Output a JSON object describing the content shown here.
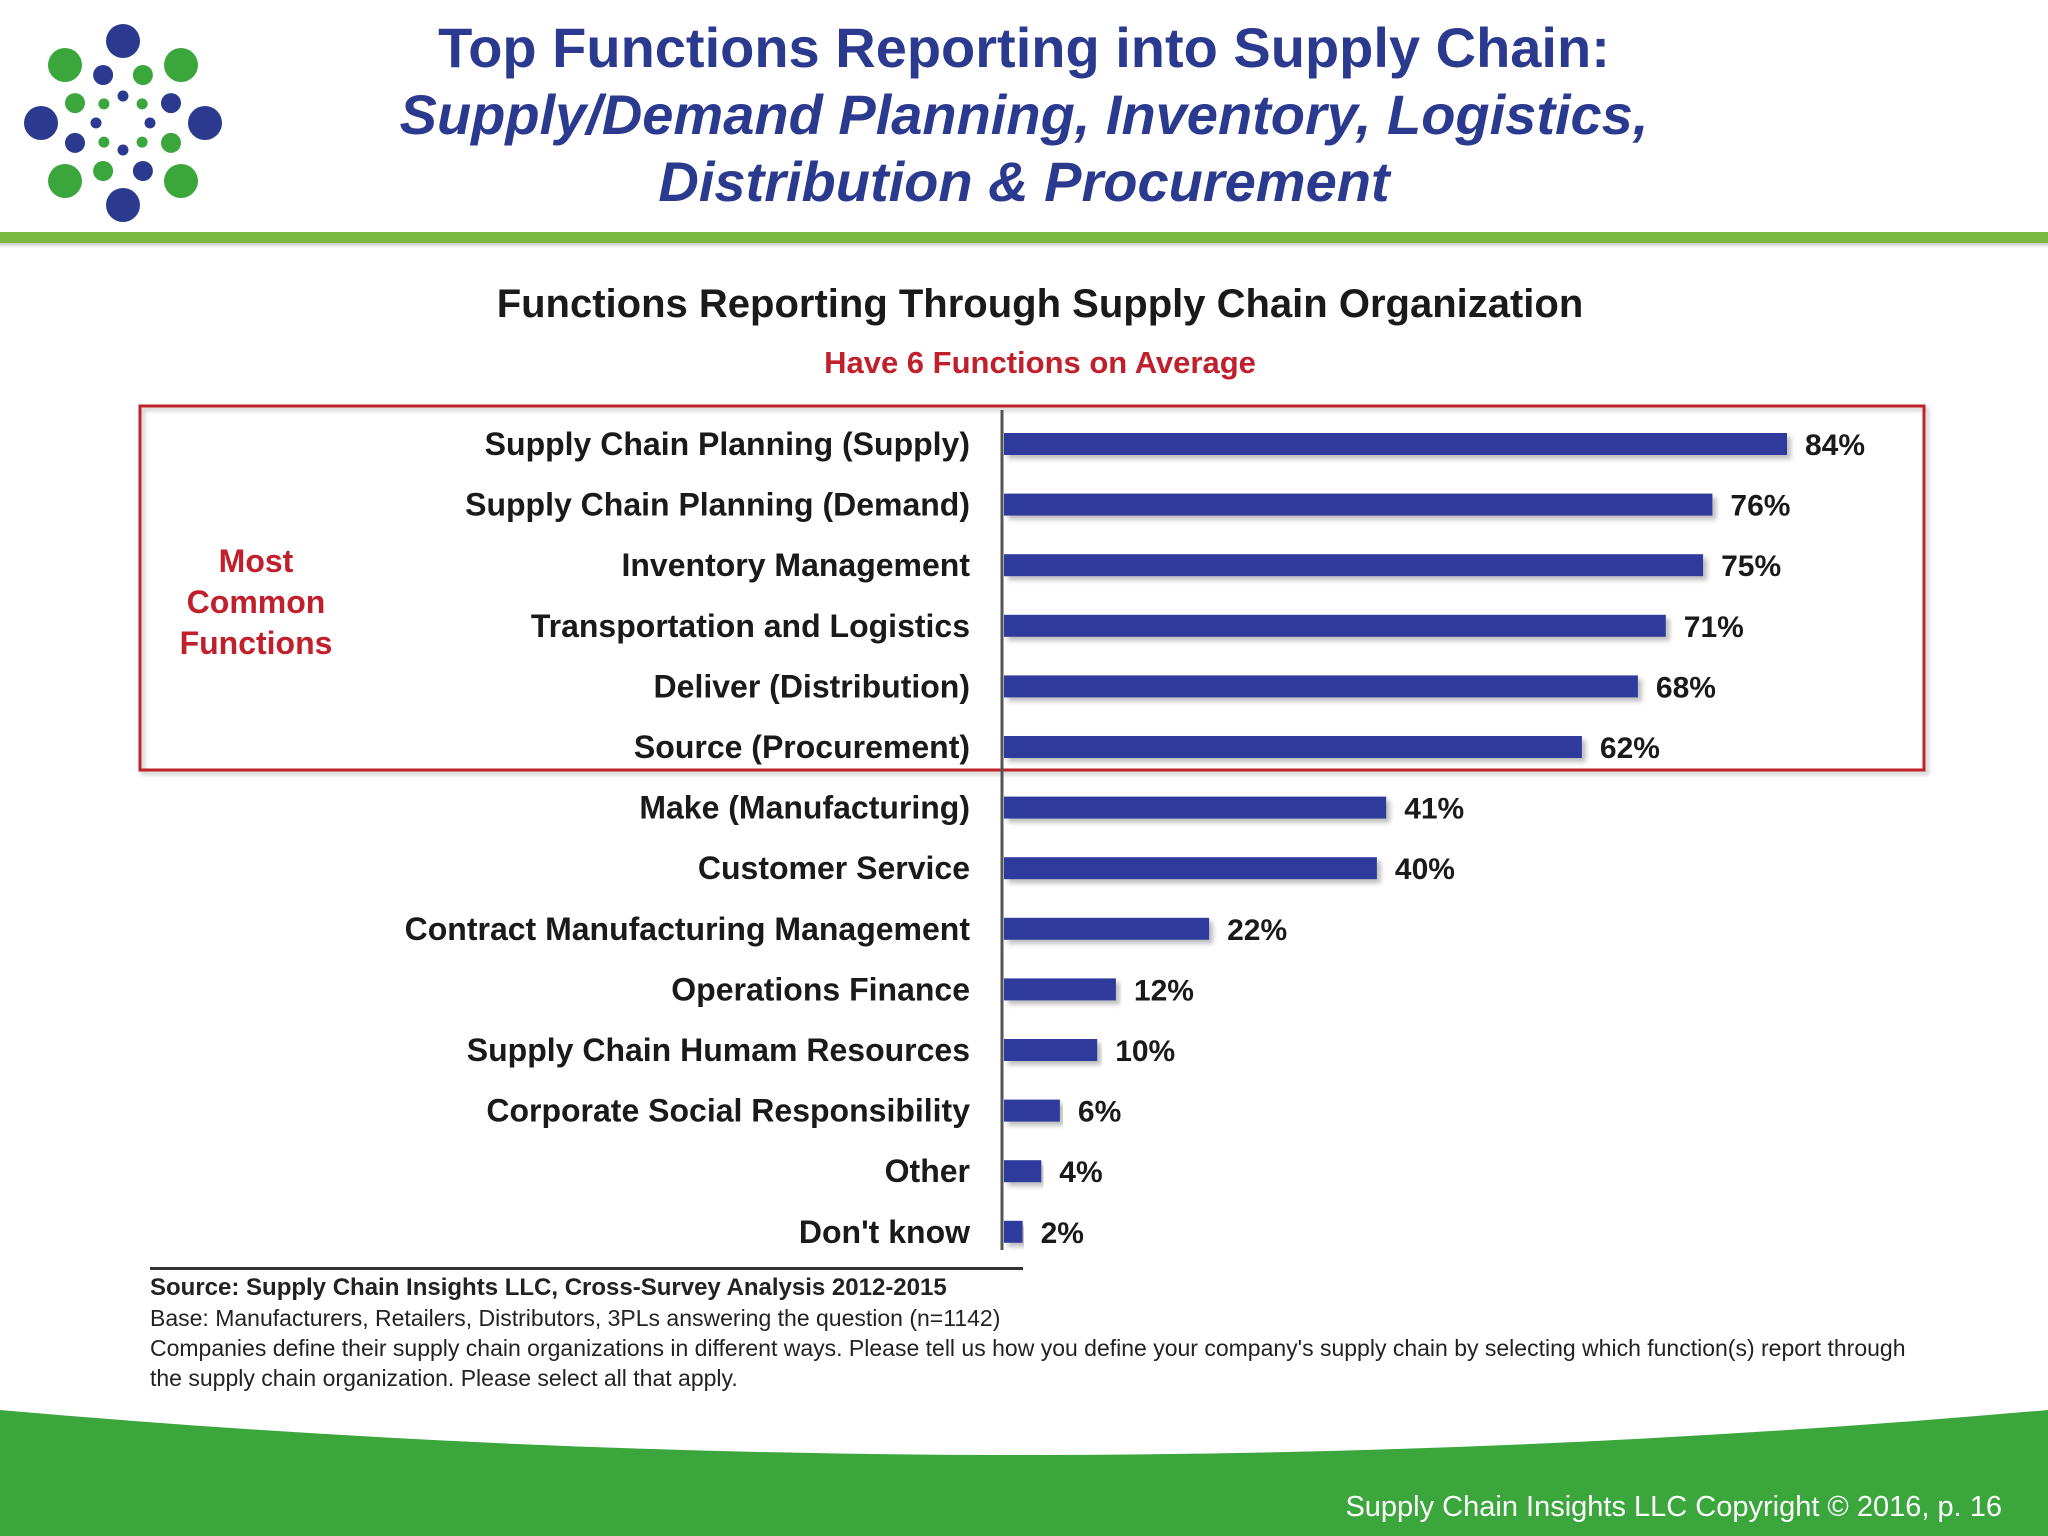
{
  "header": {
    "title_line1": "Top Functions Reporting into Supply Chain:",
    "title_line2": "Supply/Demand Planning, Inventory, Logistics,",
    "title_line3": "Distribution & Procurement"
  },
  "colors": {
    "title": "#2b3a8f",
    "bar": "#2f3a9c",
    "accent_red": "#c0202c",
    "green": "#7ab942",
    "footer_green": "#3aa63c",
    "logo_blue": "#2b3a8f",
    "logo_green": "#3aa63c"
  },
  "logo": {
    "icon": "dot-burst-logo-icon"
  },
  "chart_data": {
    "type": "bar",
    "orientation": "horizontal",
    "title": "Functions Reporting Through Supply Chain Organization",
    "subtitle": "Have 6 Functions on Average",
    "categories": [
      "Supply Chain Planning (Supply)",
      "Supply Chain Planning (Demand)",
      "Inventory Management",
      "Transportation and Logistics",
      "Deliver (Distribution)",
      "Source (Procurement)",
      "Make (Manufacturing)",
      "Customer Service",
      "Contract Manufacturing Management",
      "Operations Finance",
      "Supply Chain Humam Resources",
      "Corporate Social Responsibility",
      "Other",
      "Don't know"
    ],
    "values": [
      84,
      76,
      75,
      71,
      68,
      62,
      41,
      40,
      22,
      12,
      10,
      6,
      4,
      2
    ],
    "value_labels": [
      "84%",
      "76%",
      "75%",
      "71%",
      "68%",
      "62%",
      "41%",
      "40%",
      "22%",
      "12%",
      "10%",
      "6%",
      "4%",
      "2%"
    ],
    "xlim": [
      0,
      100
    ],
    "grid": false,
    "legend": "none",
    "highlight": {
      "label_lines": [
        "Most",
        "Common",
        "Functions"
      ],
      "covers_first_n": 6
    }
  },
  "notes": {
    "source": "Source:  Supply Chain Insights LLC, Cross-Survey Analysis 2012-2015",
    "base": "Base:  Manufacturers, Retailers, Distributors, 3PLs answering the question (n=1142)",
    "question": "Companies define their supply chain organizations in different ways.  Please tell us how you define your company's supply chain by selecting which function(s) report through the supply chain organization.  Please select all that apply."
  },
  "footer": {
    "copyright": "Supply Chain Insights LLC Copyright © 2016, p. 16"
  }
}
